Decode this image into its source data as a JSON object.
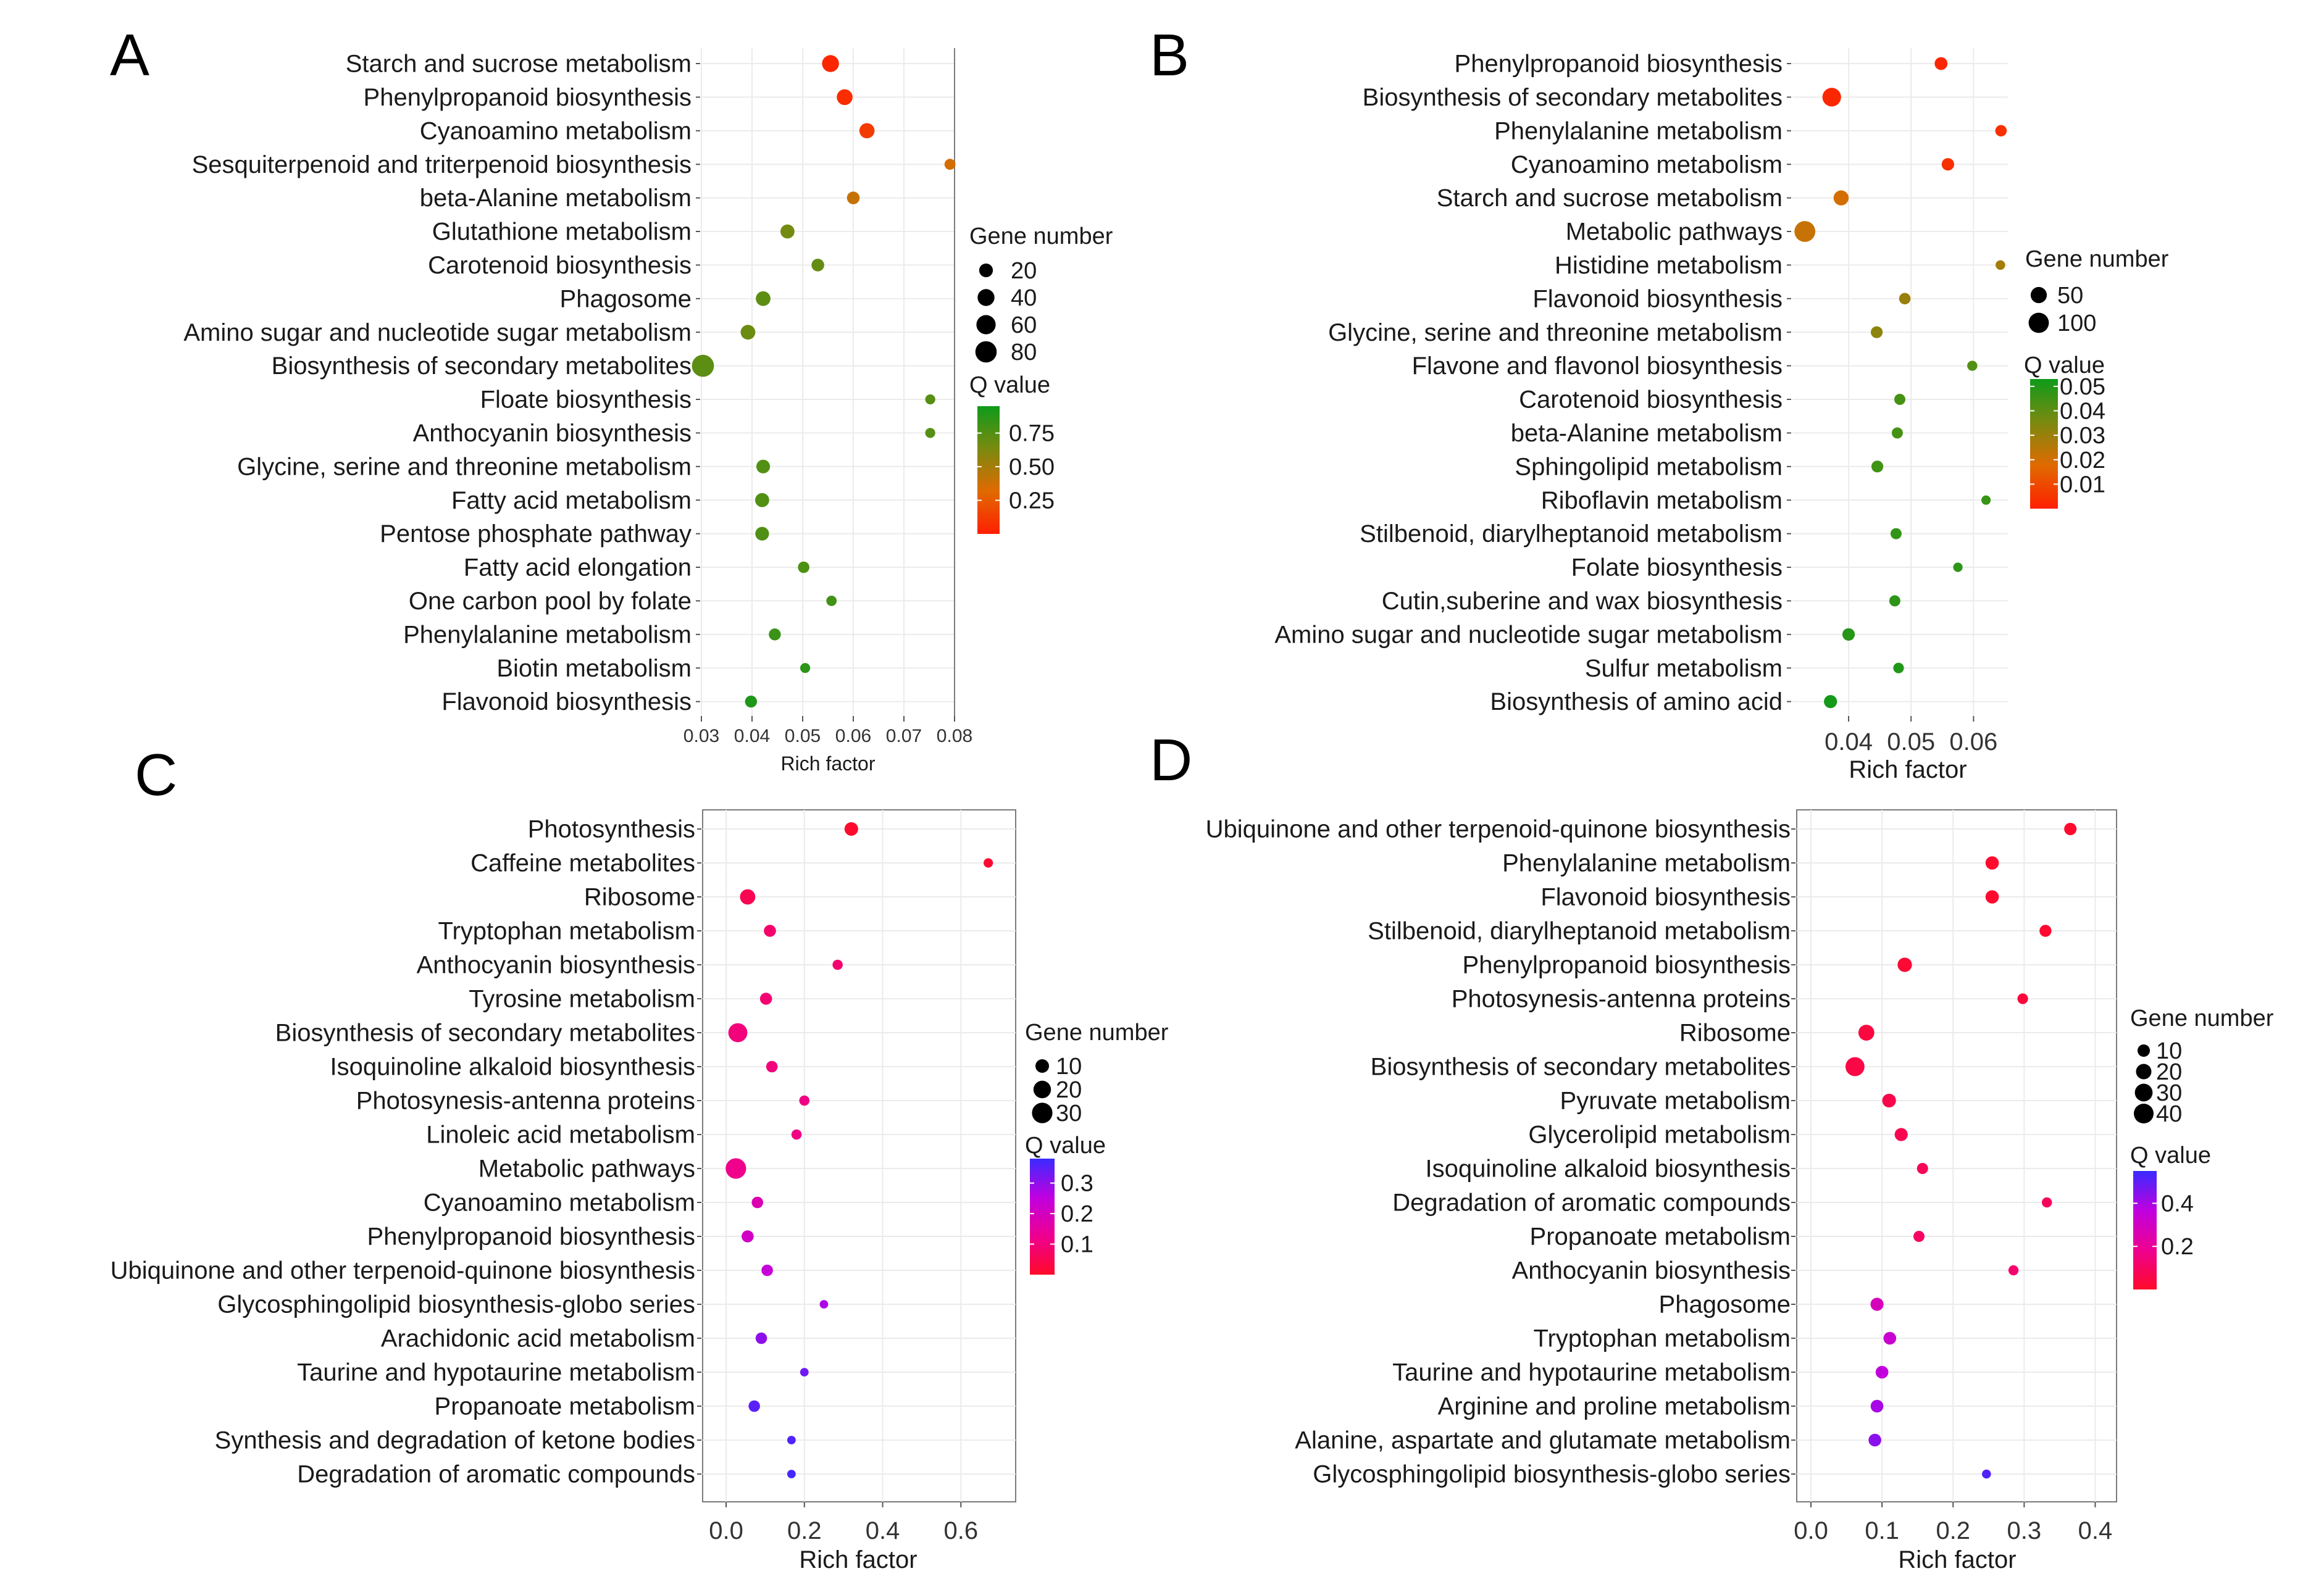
{
  "chart_data": [
    {
      "panel": "A",
      "type": "scatter",
      "xlabel": "Rich factor",
      "xlim": [
        0.03,
        0.08
      ],
      "xticks": [
        0.03,
        0.04,
        0.05,
        0.06,
        0.07,
        0.08
      ],
      "xtick_labels": [
        "0.03",
        "0.04",
        "0.05",
        "0.06",
        "0.07",
        "0.08"
      ],
      "size_legend": {
        "title": "Gene number",
        "values": [
          20,
          40,
          60,
          80
        ],
        "labels": [
          "20",
          "40",
          "60",
          "80"
        ]
      },
      "color_legend": {
        "title": "Q value",
        "range": [
          0.0,
          0.95
        ],
        "ticks": [
          0.25,
          0.5,
          0.75
        ],
        "labels": [
          "0.25",
          "0.50",
          "0.75"
        ],
        "colors": [
          "#ff1f00",
          "#e06a00",
          "#7a8a10",
          "#0e9a1a"
        ]
      },
      "terms": [
        "Starch and sucrose metabolism",
        "Phenylpropanoid biosynthesis",
        "Cyanoamino metabolism",
        "Sesquiterpenoid and triterpenoid  biosynthesis",
        "beta-Alanine metabolism",
        "Glutathione metabolism",
        "Carotenoid biosynthesis",
        "Phagosome",
        "Amino sugar and nucleotide sugar metabolism",
        "Biosynthesis of secondary metabolites",
        "Floate biosynthesis",
        "Anthocyanin biosynthesis",
        "Glycine, serine and threonine metabolism",
        "Fatty acid metabolism",
        "Pentose phosphate pathway",
        "Fatty acid elongation",
        "One carbon pool by folate",
        "Phenylalanine metabolism",
        "Biotin metabolism",
        "Flavonoid biosynthesis"
      ],
      "points": [
        {
          "x": 0.0555,
          "gene": 40,
          "q": 0.03
        },
        {
          "x": 0.0583,
          "gene": 32,
          "q": 0.06
        },
        {
          "x": 0.0627,
          "gene": 28,
          "q": 0.12
        },
        {
          "x": 0.0791,
          "gene": 8,
          "q": 0.35
        },
        {
          "x": 0.06,
          "gene": 15,
          "q": 0.4
        },
        {
          "x": 0.047,
          "gene": 22,
          "q": 0.65
        },
        {
          "x": 0.053,
          "gene": 15,
          "q": 0.7
        },
        {
          "x": 0.0422,
          "gene": 25,
          "q": 0.72
        },
        {
          "x": 0.0392,
          "gene": 25,
          "q": 0.68
        },
        {
          "x": 0.0303,
          "gene": 88,
          "q": 0.72
        },
        {
          "x": 0.0752,
          "gene": 5,
          "q": 0.74
        },
        {
          "x": 0.0752,
          "gene": 5,
          "q": 0.74
        },
        {
          "x": 0.0422,
          "gene": 20,
          "q": 0.75
        },
        {
          "x": 0.042,
          "gene": 22,
          "q": 0.75
        },
        {
          "x": 0.042,
          "gene": 20,
          "q": 0.76
        },
        {
          "x": 0.0502,
          "gene": 10,
          "q": 0.77
        },
        {
          "x": 0.0557,
          "gene": 6,
          "q": 0.8
        },
        {
          "x": 0.0445,
          "gene": 12,
          "q": 0.82
        },
        {
          "x": 0.0505,
          "gene": 5,
          "q": 0.86
        },
        {
          "x": 0.0398,
          "gene": 12,
          "q": 0.9
        }
      ]
    },
    {
      "panel": "B",
      "type": "scatter",
      "xlabel": "Rich factor",
      "xlim": [
        0.031,
        0.0655
      ],
      "xticks": [
        0.04,
        0.05,
        0.06
      ],
      "xtick_labels": [
        "0.04",
        "0.05",
        "0.06"
      ],
      "size_legend": {
        "title": "Gene number",
        "values": [
          50,
          100
        ],
        "labels": [
          "50",
          "100"
        ]
      },
      "color_legend": {
        "title": "Q value",
        "range": [
          0.0,
          0.053
        ],
        "ticks": [
          0.01,
          0.02,
          0.03,
          0.04,
          0.05
        ],
        "labels": [
          "0.01",
          "0.02",
          "0.03",
          "0.04",
          "0.05"
        ],
        "colors": [
          "#ff1f00",
          "#e06a00",
          "#7a8a10",
          "#0e9a1a"
        ]
      },
      "terms": [
        "Phenylpropanoid biosynthesis",
        "Biosynthesis of secondary metabolites",
        "Phenylalanine metabolism",
        "Cyanoamino metabolism",
        "Starch and sucrose metabolism",
        "Metabolic pathways",
        "Histidine metabolism",
        "Flavonoid biosynthesis",
        "Glycine, serine and threonine metabolism",
        "Flavone and flavonol biosynthesis",
        "Carotenoid biosynthesis",
        "beta-Alanine metabolism",
        "Sphingolipid metabolism",
        "Riboflavin metabolism",
        "Stilbenoid, diarylheptanoid metabolism",
        "Folate biosynthesis",
        "Cutin,suberine and wax biosynthesis",
        "Amino sugar and nucleotide sugar metabolism",
        "Sulfur metabolism",
        "Biosynthesis of amino acid"
      ],
      "points": [
        {
          "x": 0.0548,
          "gene": 22,
          "q": 0.002
        },
        {
          "x": 0.0373,
          "gene": 78,
          "q": 0.002
        },
        {
          "x": 0.0644,
          "gene": 14,
          "q": 0.004
        },
        {
          "x": 0.0559,
          "gene": 20,
          "q": 0.004
        },
        {
          "x": 0.0388,
          "gene": 40,
          "q": 0.02
        },
        {
          "x": 0.033,
          "gene": 108,
          "q": 0.022
        },
        {
          "x": 0.0643,
          "gene": 6,
          "q": 0.028
        },
        {
          "x": 0.049,
          "gene": 14,
          "q": 0.03
        },
        {
          "x": 0.0445,
          "gene": 16,
          "q": 0.032
        },
        {
          "x": 0.0598,
          "gene": 8,
          "q": 0.042
        },
        {
          "x": 0.0482,
          "gene": 12,
          "q": 0.044
        },
        {
          "x": 0.0478,
          "gene": 12,
          "q": 0.044
        },
        {
          "x": 0.0446,
          "gene": 16,
          "q": 0.045
        },
        {
          "x": 0.062,
          "gene": 5,
          "q": 0.046
        },
        {
          "x": 0.0476,
          "gene": 12,
          "q": 0.047
        },
        {
          "x": 0.0575,
          "gene": 5,
          "q": 0.048
        },
        {
          "x": 0.0474,
          "gene": 12,
          "q": 0.048
        },
        {
          "x": 0.04,
          "gene": 20,
          "q": 0.049
        },
        {
          "x": 0.048,
          "gene": 10,
          "q": 0.05
        },
        {
          "x": 0.0371,
          "gene": 24,
          "q": 0.052
        }
      ]
    },
    {
      "panel": "C",
      "type": "scatter",
      "xlabel": "Rich factor",
      "xlim": [
        -0.06,
        0.74
      ],
      "xticks": [
        0.0,
        0.2,
        0.4,
        0.6
      ],
      "xtick_labels": [
        "0.0",
        "0.2",
        "0.4",
        "0.6"
      ],
      "size_legend": {
        "title": "Gene number",
        "values": [
          10,
          20,
          30
        ],
        "labels": [
          "10",
          "20",
          "30"
        ]
      },
      "color_legend": {
        "title": "Q value",
        "range": [
          0.0,
          0.38
        ],
        "ticks": [
          0.1,
          0.2,
          0.3
        ],
        "labels": [
          "0.1",
          "0.2",
          "0.3"
        ],
        "colors": [
          "#ff0a2a",
          "#ee0090",
          "#c000e0",
          "#3a2aff"
        ]
      },
      "terms": [
        "Photosynthesis",
        "Caffeine metabolites",
        "Ribosome",
        "Tryptophan metabolism",
        "Anthocyanin biosynthesis",
        "Tyrosine metabolism",
        "Biosynthesis of secondary metabolites",
        "Isoquinoline alkaloid biosynthesis",
        "Photosynesis-antenna proteins",
        "Linoleic acid metabolism",
        "Metabolic pathways",
        "Cyanoamino metabolism",
        "Phenylpropanoid biosynthesis",
        "Ubiquinone and other terpenoid-quinone biosynthesis",
        "Glycosphingolipid biosynthesis-globo series",
        "Arachidonic acid metabolism",
        "Taurine and hypotaurine metabolism",
        "Propanoate metabolism",
        "Synthesis and degradation of ketone bodies",
        "Degradation of aromatic compounds"
      ],
      "points": [
        {
          "x": 0.32,
          "gene": 10,
          "q": 0.005
        },
        {
          "x": 0.67,
          "gene": 3,
          "q": 0.01
        },
        {
          "x": 0.055,
          "gene": 14,
          "q": 0.05
        },
        {
          "x": 0.112,
          "gene": 7,
          "q": 0.08
        },
        {
          "x": 0.285,
          "gene": 4,
          "q": 0.085
        },
        {
          "x": 0.102,
          "gene": 7,
          "q": 0.09
        },
        {
          "x": 0.03,
          "gene": 25,
          "q": 0.1
        },
        {
          "x": 0.117,
          "gene": 6,
          "q": 0.1
        },
        {
          "x": 0.2,
          "gene": 4,
          "q": 0.11
        },
        {
          "x": 0.18,
          "gene": 4,
          "q": 0.11
        },
        {
          "x": 0.025,
          "gene": 30,
          "q": 0.12
        },
        {
          "x": 0.08,
          "gene": 6,
          "q": 0.18
        },
        {
          "x": 0.055,
          "gene": 7,
          "q": 0.21
        },
        {
          "x": 0.105,
          "gene": 6,
          "q": 0.24
        },
        {
          "x": 0.25,
          "gene": 2,
          "q": 0.27
        },
        {
          "x": 0.09,
          "gene": 6,
          "q": 0.3
        },
        {
          "x": 0.2,
          "gene": 2,
          "q": 0.33
        },
        {
          "x": 0.072,
          "gene": 6,
          "q": 0.35
        },
        {
          "x": 0.167,
          "gene": 2,
          "q": 0.36
        },
        {
          "x": 0.167,
          "gene": 2,
          "q": 0.37
        }
      ]
    },
    {
      "panel": "D",
      "type": "scatter",
      "xlabel": "Rich factor",
      "xlim": [
        -0.02,
        0.43
      ],
      "xticks": [
        0.0,
        0.1,
        0.2,
        0.3,
        0.4
      ],
      "xtick_labels": [
        "0.0",
        "0.1",
        "0.2",
        "0.3",
        "0.4"
      ],
      "size_legend": {
        "title": "Gene number",
        "values": [
          10,
          20,
          30,
          40
        ],
        "labels": [
          "10",
          "20",
          "30",
          "40"
        ]
      },
      "color_legend": {
        "title": "Q value",
        "range": [
          0.0,
          0.55
        ],
        "ticks": [
          0.2,
          0.4
        ],
        "labels": [
          "0.2",
          "0.4"
        ],
        "colors": [
          "#ff0a2a",
          "#ee0090",
          "#c000e0",
          "#3a2aff"
        ]
      },
      "terms": [
        "Ubiquinone and other terpenoid-quinone biosynthesis",
        "Phenylalanine metabolism",
        "Flavonoid biosynthesis",
        "Stilbenoid, diarylheptanoid metabolism",
        "Phenylpropanoid biosynthesis",
        "Photosynesis-antenna proteins",
        "Ribosome",
        "Biosynthesis of secondary metabolites",
        "Pyruvate metabolism",
        "Glycerolipid metabolism",
        "Isoquinoline alkaloid biosynthesis",
        "Degradation of aromatic compounds",
        "Propanoate metabolism",
        "Anthocyanin biosynthesis",
        "Phagosome",
        "Tryptophan metabolism",
        "Taurine and hypotaurine metabolism",
        "Arginine and proline metabolism",
        "Alanine, aspartate and glutamate metabolism",
        "Glycosphingolipid biosynthesis-globo series"
      ],
      "points": [
        {
          "x": 0.365,
          "gene": 10,
          "q": 0.005
        },
        {
          "x": 0.255,
          "gene": 13,
          "q": 0.005
        },
        {
          "x": 0.255,
          "gene": 13,
          "q": 0.008
        },
        {
          "x": 0.33,
          "gene": 9,
          "q": 0.01
        },
        {
          "x": 0.132,
          "gene": 16,
          "q": 0.02
        },
        {
          "x": 0.298,
          "gene": 6,
          "q": 0.03
        },
        {
          "x": 0.078,
          "gene": 22,
          "q": 0.04
        },
        {
          "x": 0.062,
          "gene": 36,
          "q": 0.05
        },
        {
          "x": 0.11,
          "gene": 14,
          "q": 0.06
        },
        {
          "x": 0.127,
          "gene": 12,
          "q": 0.07
        },
        {
          "x": 0.157,
          "gene": 7,
          "q": 0.08
        },
        {
          "x": 0.332,
          "gene": 5,
          "q": 0.09
        },
        {
          "x": 0.152,
          "gene": 7,
          "q": 0.1
        },
        {
          "x": 0.285,
          "gene": 5,
          "q": 0.12
        },
        {
          "x": 0.093,
          "gene": 12,
          "q": 0.28
        },
        {
          "x": 0.111,
          "gene": 11,
          "q": 0.33
        },
        {
          "x": 0.1,
          "gene": 11,
          "q": 0.36
        },
        {
          "x": 0.093,
          "gene": 11,
          "q": 0.4
        },
        {
          "x": 0.09,
          "gene": 11,
          "q": 0.44
        },
        {
          "x": 0.247,
          "gene": 3,
          "q": 0.52
        }
      ]
    }
  ]
}
